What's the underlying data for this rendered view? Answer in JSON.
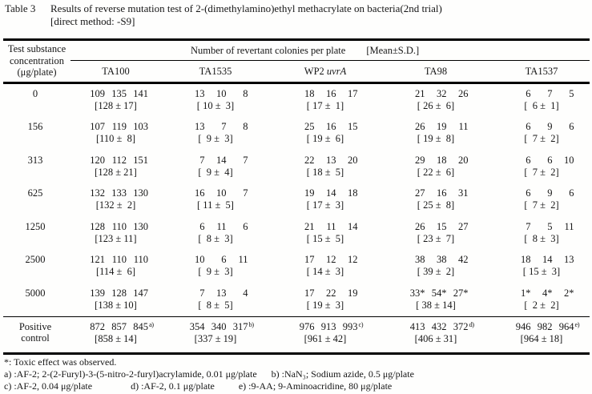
{
  "title": {
    "label": "Table 3",
    "caption_line1": "Results of reverse mutation test of 2-(dimethylamino)ethyl methacrylate on bacteria(2nd trial)",
    "caption_line2": "[direct method: -S9]"
  },
  "header": {
    "col1": [
      "Test substance",
      "concentration",
      "(μg/plate)"
    ],
    "span_label": "Number of revertant colonies per plate",
    "mean_label": "[Mean±S.D.]",
    "strains": [
      {
        "text": "TA100",
        "italic": ""
      },
      {
        "text": "TA1535",
        "italic": ""
      },
      {
        "text": "WP2 ",
        "italic": "uvrA"
      },
      {
        "text": "TA98",
        "italic": ""
      },
      {
        "text": "TA1537",
        "italic": ""
      }
    ]
  },
  "rows": [
    {
      "conc": "0",
      "cells": [
        {
          "c": [
            "109",
            "135",
            "141"
          ],
          "mean": "[128 ± 17]"
        },
        {
          "c": [
            "13",
            "10",
            "8"
          ],
          "mean": "[ 10 ±  3]"
        },
        {
          "c": [
            "18",
            "16",
            "17"
          ],
          "mean": "[ 17 ±  1]"
        },
        {
          "c": [
            "21",
            "32",
            "26"
          ],
          "mean": "[ 26 ±  6]"
        },
        {
          "c": [
            "6",
            "7",
            "5"
          ],
          "mean": "[  6 ±  1]"
        }
      ]
    },
    {
      "conc": "156",
      "cells": [
        {
          "c": [
            "107",
            "119",
            "103"
          ],
          "mean": "[110 ±  8]"
        },
        {
          "c": [
            "13",
            "7",
            "8"
          ],
          "mean": "[  9 ±  3]"
        },
        {
          "c": [
            "25",
            "16",
            "15"
          ],
          "mean": "[ 19 ±  6]"
        },
        {
          "c": [
            "26",
            "19",
            "11"
          ],
          "mean": "[ 19 ±  8]"
        },
        {
          "c": [
            "6",
            "9",
            "6"
          ],
          "mean": "[  7 ±  2]"
        }
      ]
    },
    {
      "conc": "313",
      "cells": [
        {
          "c": [
            "120",
            "112",
            "151"
          ],
          "mean": "[128 ± 21]"
        },
        {
          "c": [
            "7",
            "14",
            "7"
          ],
          "mean": "[  9 ±  4]"
        },
        {
          "c": [
            "22",
            "13",
            "20"
          ],
          "mean": "[ 18 ±  5]"
        },
        {
          "c": [
            "29",
            "18",
            "20"
          ],
          "mean": "[ 22 ±  6]"
        },
        {
          "c": [
            "6",
            "6",
            "10"
          ],
          "mean": "[  7 ±  2]"
        }
      ]
    },
    {
      "conc": "625",
      "cells": [
        {
          "c": [
            "132",
            "133",
            "130"
          ],
          "mean": "[132 ±  2]"
        },
        {
          "c": [
            "16",
            "10",
            "7"
          ],
          "mean": "[ 11 ±  5]"
        },
        {
          "c": [
            "19",
            "14",
            "18"
          ],
          "mean": "[ 17 ±  3]"
        },
        {
          "c": [
            "27",
            "16",
            "31"
          ],
          "mean": "[ 25 ±  8]"
        },
        {
          "c": [
            "6",
            "9",
            "6"
          ],
          "mean": "[  7 ±  2]"
        }
      ]
    },
    {
      "conc": "1250",
      "cells": [
        {
          "c": [
            "128",
            "110",
            "130"
          ],
          "mean": "[123 ± 11]"
        },
        {
          "c": [
            "6",
            "11",
            "6"
          ],
          "mean": "[  8 ±  3]"
        },
        {
          "c": [
            "21",
            "11",
            "14"
          ],
          "mean": "[ 15 ±  5]"
        },
        {
          "c": [
            "26",
            "15",
            "27"
          ],
          "mean": "[ 23 ±  7]"
        },
        {
          "c": [
            "7",
            "5",
            "11"
          ],
          "mean": "[  8 ±  3]"
        }
      ]
    },
    {
      "conc": "2500",
      "cells": [
        {
          "c": [
            "121",
            "110",
            "110"
          ],
          "mean": "[114 ±  6]"
        },
        {
          "c": [
            "10",
            "6",
            "11"
          ],
          "mean": "[  9 ±  3]"
        },
        {
          "c": [
            "17",
            "12",
            "12"
          ],
          "mean": "[ 14 ±  3]"
        },
        {
          "c": [
            "38",
            "38",
            "42"
          ],
          "mean": "[ 39 ±  2]"
        },
        {
          "c": [
            "18",
            "14",
            "13"
          ],
          "mean": "[ 15 ±  3]"
        }
      ]
    },
    {
      "conc": "5000",
      "cells": [
        {
          "c": [
            "139",
            "128",
            "147"
          ],
          "mean": "[138 ± 10]"
        },
        {
          "c": [
            "7",
            "13",
            "4"
          ],
          "mean": "[  8 ±  5]"
        },
        {
          "c": [
            "17",
            "22",
            "19"
          ],
          "mean": "[ 19 ±  3]"
        },
        {
          "c": [
            "33*",
            "54*",
            "27*"
          ],
          "mean": "[ 38 ± 14]"
        },
        {
          "c": [
            "1*",
            "4*",
            "2*"
          ],
          "mean": "[  2 ±  2]"
        }
      ]
    }
  ],
  "positive_row": {
    "conc_line1": "Positive",
    "conc_line2": "control",
    "cells": [
      {
        "c": [
          "872",
          "857",
          "845"
        ],
        "sup": "a)",
        "mean": "[858 ± 14]"
      },
      {
        "c": [
          "354",
          "340",
          "317"
        ],
        "sup": "b)",
        "mean": "[337 ± 19]"
      },
      {
        "c": [
          "976",
          "913",
          "993"
        ],
        "sup": "c)",
        "mean": "[961 ± 42]"
      },
      {
        "c": [
          "413",
          "432",
          "372"
        ],
        "sup": "d)",
        "mean": "[406 ± 31]"
      },
      {
        "c": [
          "946",
          "982",
          "964"
        ],
        "sup": "e)",
        "mean": "[964 ± 18]"
      }
    ]
  },
  "footnotes": {
    "toxic": "*: Toxic effect was observed.",
    "line2": [
      "a) :AF-2; 2-(2-Furyl)-3-(5-nitro-2-furyl)acrylamide, 0.01 μg/plate",
      "b) :NaN₃; Sodium azide, 0.5 μg/plate"
    ],
    "line3": [
      "c) :AF-2, 0.04 μg/plate",
      "d) :AF-2, 0.1 μg/plate",
      "e) :9-AA; 9-Aminoacridine, 80 μg/plate"
    ]
  }
}
